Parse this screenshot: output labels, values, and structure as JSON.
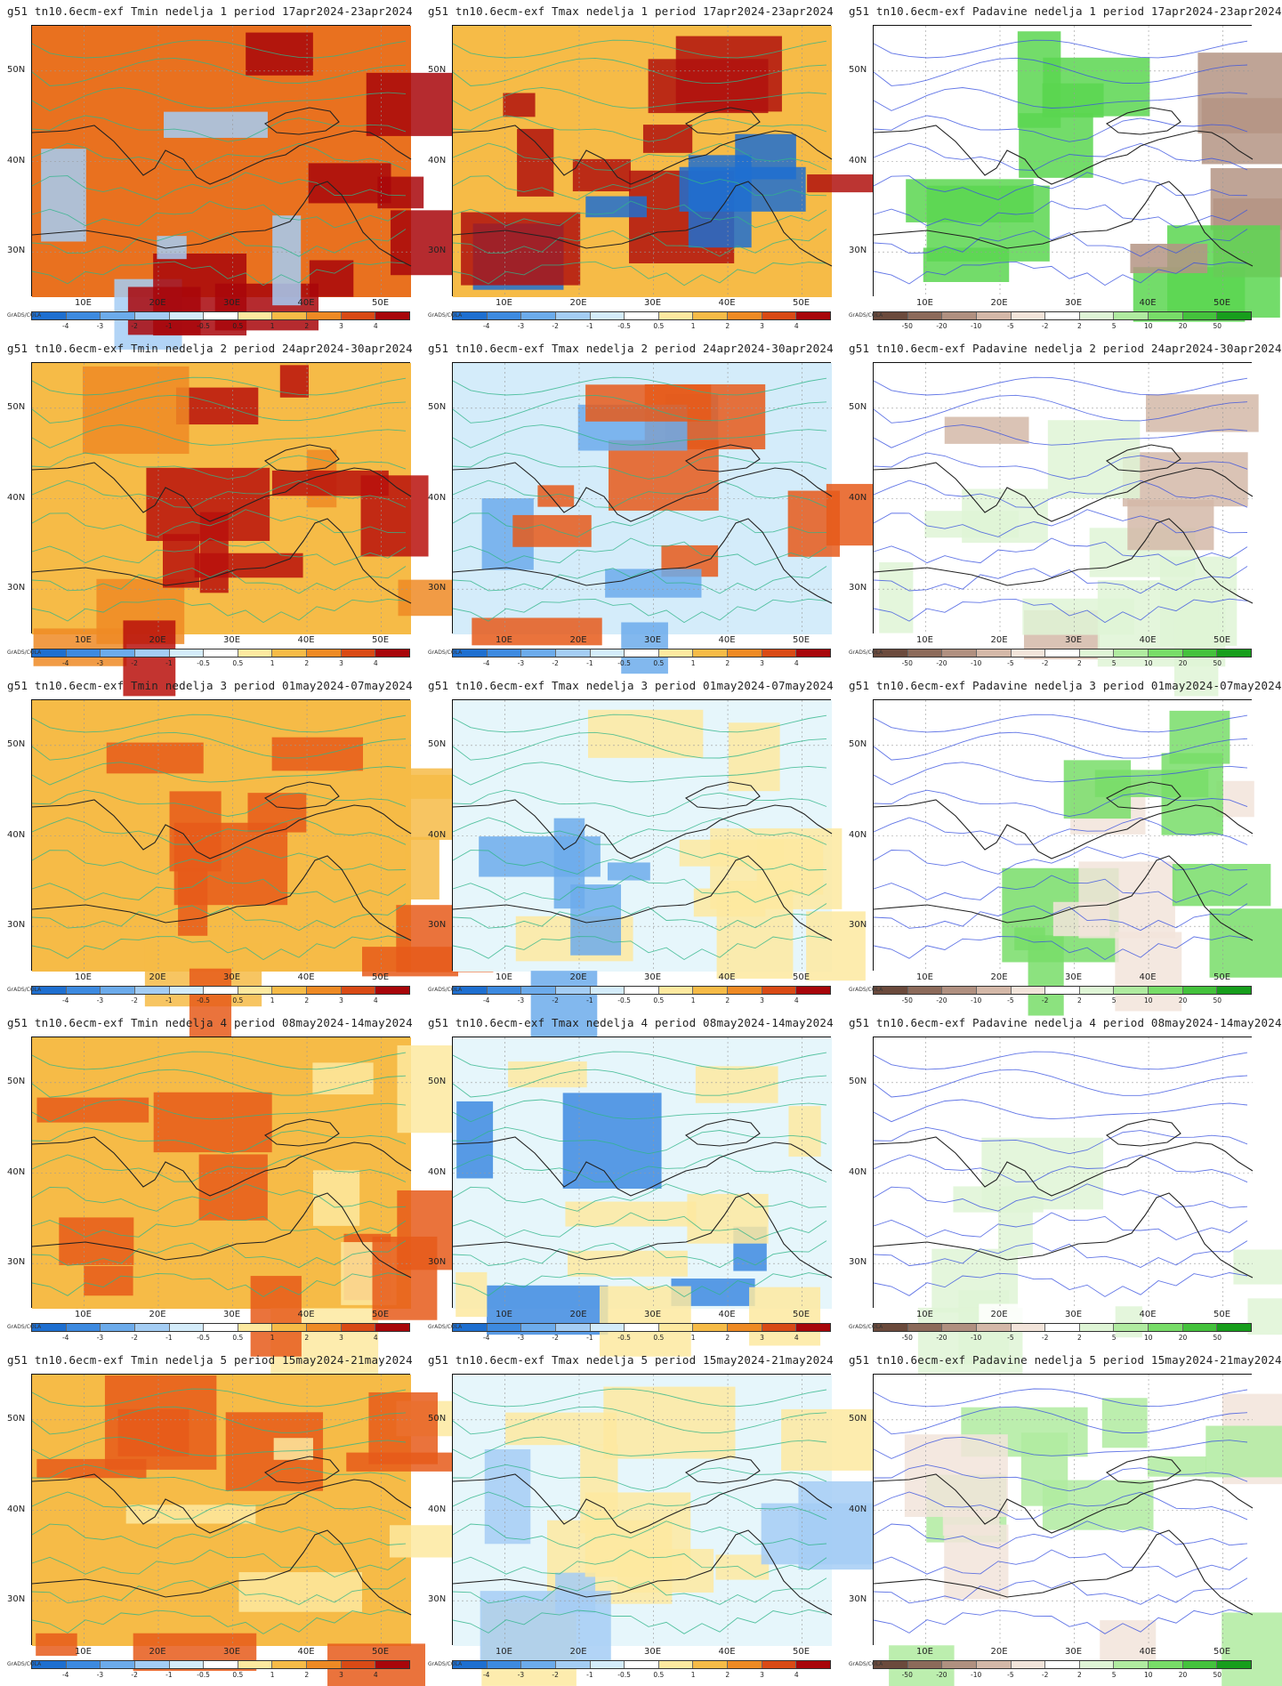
{
  "credit": "GrADS/COLA",
  "lat_labels": [
    "50N",
    "40N",
    "30N"
  ],
  "lon_labels": [
    "10E",
    "20E",
    "30E",
    "40E",
    "50E"
  ],
  "colorbars": {
    "temp": {
      "labels": [
        "-4",
        "-3",
        "-2",
        "-1",
        "-0.5",
        "0.5",
        "1",
        "2",
        "3",
        "4"
      ],
      "colors": [
        "#1e6fd0",
        "#3d8ae0",
        "#6cabeb",
        "#a4cdf4",
        "#d4ecfa",
        "#ffffff",
        "#fde9a0",
        "#f6bb47",
        "#ee8a24",
        "#d94a15",
        "#a8060a"
      ]
    },
    "precip": {
      "labels": [
        "-50",
        "-20",
        "-10",
        "-5",
        "-2",
        "2",
        "5",
        "10",
        "20",
        "50"
      ],
      "colors": [
        "#6b4a3c",
        "#8c6a5a",
        "#b09080",
        "#d4b8a8",
        "#f2e4da",
        "#ffffff",
        "#dff5d6",
        "#b0eba0",
        "#78dd68",
        "#44c23c",
        "#179e1c"
      ]
    }
  },
  "panels": [
    {
      "title": "g51 tn10.6ecm-exf Tmin nedelja 1 period 17apr2024-23apr2024",
      "scale": "temp",
      "base": "#e9711f",
      "hot": "#a8060a",
      "cold": "#a4cdf4"
    },
    {
      "title": "g51 tn10.6ecm-exf Tmax nedelja 1 period 17apr2024-23apr2024",
      "scale": "temp",
      "base": "#f6bb47",
      "hot": "#b0120e",
      "cold": "#1e6fd0"
    },
    {
      "title": "g51 tn10.6ecm-exf Padavine nedelja 1 period 17apr2024-23apr2024",
      "scale": "precip",
      "base": "#ffffff",
      "hot": "#5ad650",
      "cold": "#b49484"
    },
    {
      "title": "g51 tn10.6ecm-exf Tmin nedelja 2 period 24apr2024-30apr2024",
      "scale": "temp",
      "base": "#f6bb47",
      "hot": "#b8100c",
      "cold": "#ee8a24"
    },
    {
      "title": "g51 tn10.6ecm-exf Tmax nedelja 2 period 24apr2024-30apr2024",
      "scale": "temp",
      "base": "#d4ecfa",
      "hot": "#e65a1a",
      "cold": "#6cabeb"
    },
    {
      "title": "g51 tn10.6ecm-exf Padavine nedelja 2 period 24apr2024-30apr2024",
      "scale": "precip",
      "base": "#ffffff",
      "hot": "#dff5d6",
      "cold": "#d4b8a8"
    },
    {
      "title": "g51 tn10.6ecm-exf Tmin nedelja 3 period 01may2024-07may2024",
      "scale": "temp",
      "base": "#f6bb47",
      "hot": "#e65a1a",
      "cold": "#f6bb47"
    },
    {
      "title": "g51 tn10.6ecm-exf Tmax nedelja 3 period 01may2024-07may2024",
      "scale": "temp",
      "base": "#e6f6fb",
      "hot": "#fde9a0",
      "cold": "#6cabeb"
    },
    {
      "title": "g51 tn10.6ecm-exf Padavine nedelja 3 period 01may2024-07may2024",
      "scale": "precip",
      "base": "#ffffff",
      "hot": "#78dd68",
      "cold": "#f2e4da"
    },
    {
      "title": "g51 tn10.6ecm-exf Tmin nedelja 4 period 08may2024-14may2024",
      "scale": "temp",
      "base": "#f6bb47",
      "hot": "#e65a1a",
      "cold": "#fde9a0"
    },
    {
      "title": "g51 tn10.6ecm-exf Tmax nedelja 4 period 08may2024-14may2024",
      "scale": "temp",
      "base": "#e6f6fb",
      "hot": "#fde9a0",
      "cold": "#3d8ae0"
    },
    {
      "title": "g51 tn10.6ecm-exf Padavine nedelja 4 period 08may2024-14may2024",
      "scale": "precip",
      "base": "#ffffff",
      "hot": "#dff5d6",
      "cold": "#ffffff"
    },
    {
      "title": "g51 tn10.6ecm-exf Tmin nedelja 5 period 15may2024-21may2024",
      "scale": "temp",
      "base": "#f6bb47",
      "hot": "#e65a1a",
      "cold": "#fde9a0"
    },
    {
      "title": "g51 tn10.6ecm-exf Tmax nedelja 5 period 15may2024-21may2024",
      "scale": "temp",
      "base": "#e6f6fb",
      "hot": "#fde9a0",
      "cold": "#a4cdf4"
    },
    {
      "title": "g51 tn10.6ecm-exf Padavine nedelja 5 period 15may2024-21may2024",
      "scale": "precip",
      "base": "#ffffff",
      "hot": "#b0eba0",
      "cold": "#f2e4da"
    }
  ]
}
